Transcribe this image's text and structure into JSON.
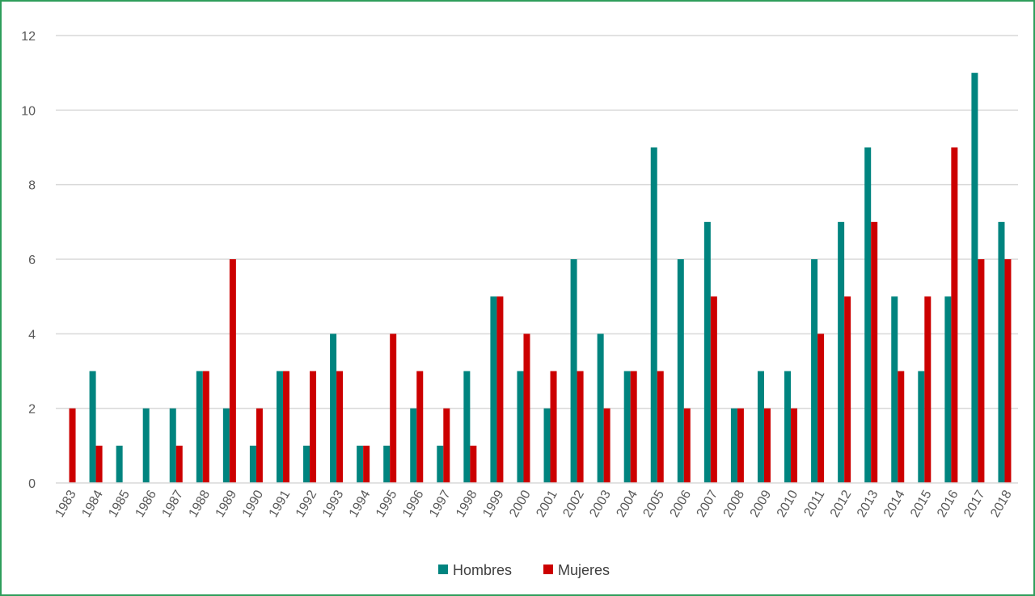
{
  "chart_data": {
    "type": "bar",
    "title": "",
    "xlabel": "",
    "ylabel": "",
    "ylim": [
      0,
      12
    ],
    "yticks": [
      0,
      2,
      4,
      6,
      8,
      10,
      12
    ],
    "grid": "horizontal",
    "legend_position": "bottom",
    "categories": [
      "1983",
      "1984",
      "1985",
      "1986",
      "1987",
      "1988",
      "1989",
      "1990",
      "1991",
      "1992",
      "1993",
      "1994",
      "1995",
      "1996",
      "1997",
      "1998",
      "1999",
      "2000",
      "2001",
      "2002",
      "2003",
      "2004",
      "2005",
      "2006",
      "2007",
      "2008",
      "2009",
      "2010",
      "2011",
      "2012",
      "2013",
      "2014",
      "2015",
      "2016",
      "2017",
      "2018"
    ],
    "series": [
      {
        "name": "Hombres",
        "color": "#00847f",
        "values": [
          0,
          3,
          1,
          2,
          2,
          3,
          2,
          1,
          3,
          1,
          4,
          1,
          1,
          2,
          1,
          3,
          5,
          3,
          2,
          6,
          4,
          3,
          9,
          6,
          7,
          2,
          3,
          3,
          6,
          7,
          9,
          5,
          3,
          5,
          11,
          7
        ]
      },
      {
        "name": "Mujeres",
        "color": "#cc0000",
        "values": [
          2,
          1,
          0,
          0,
          1,
          3,
          6,
          2,
          3,
          3,
          3,
          1,
          4,
          3,
          2,
          1,
          5,
          4,
          3,
          3,
          2,
          3,
          3,
          2,
          5,
          2,
          2,
          2,
          4,
          5,
          7,
          3,
          5,
          9,
          6,
          6
        ]
      }
    ]
  }
}
